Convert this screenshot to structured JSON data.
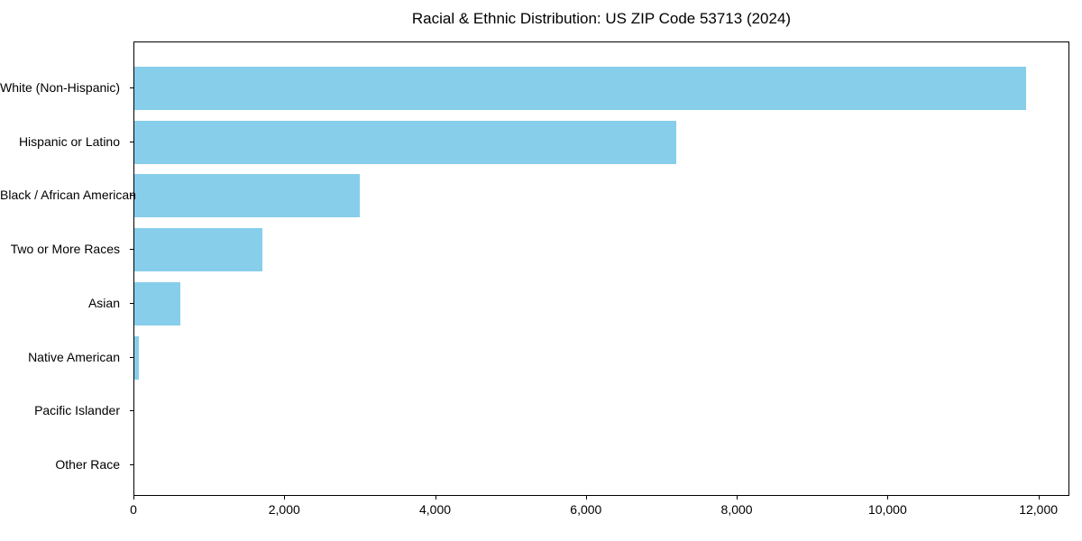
{
  "chart_data": {
    "type": "bar",
    "orientation": "horizontal",
    "title": "Racial & Ethnic Distribution: US ZIP Code 53713 (2024)",
    "categories": [
      "White (Non-Hispanic)",
      "Hispanic or Latino",
      "Black / African American",
      "Two or More Races",
      "Asian",
      "Native American",
      "Pacific Islander",
      "Other Race"
    ],
    "values": [
      11820,
      7190,
      2990,
      1700,
      615,
      60,
      0,
      0
    ],
    "xlabel": "",
    "ylabel": "",
    "xlim": [
      0,
      12411
    ],
    "x_ticks": [
      0,
      2000,
      4000,
      6000,
      8000,
      10000,
      12000
    ],
    "x_tick_labels": [
      "0",
      "2,000",
      "4,000",
      "6,000",
      "8,000",
      "10,000",
      "12,000"
    ],
    "bar_color": "#87CEEB",
    "axis_color": "#000000",
    "text_color": "#000000",
    "background_color": "#FFFFFF",
    "grid": false,
    "legend": false
  }
}
